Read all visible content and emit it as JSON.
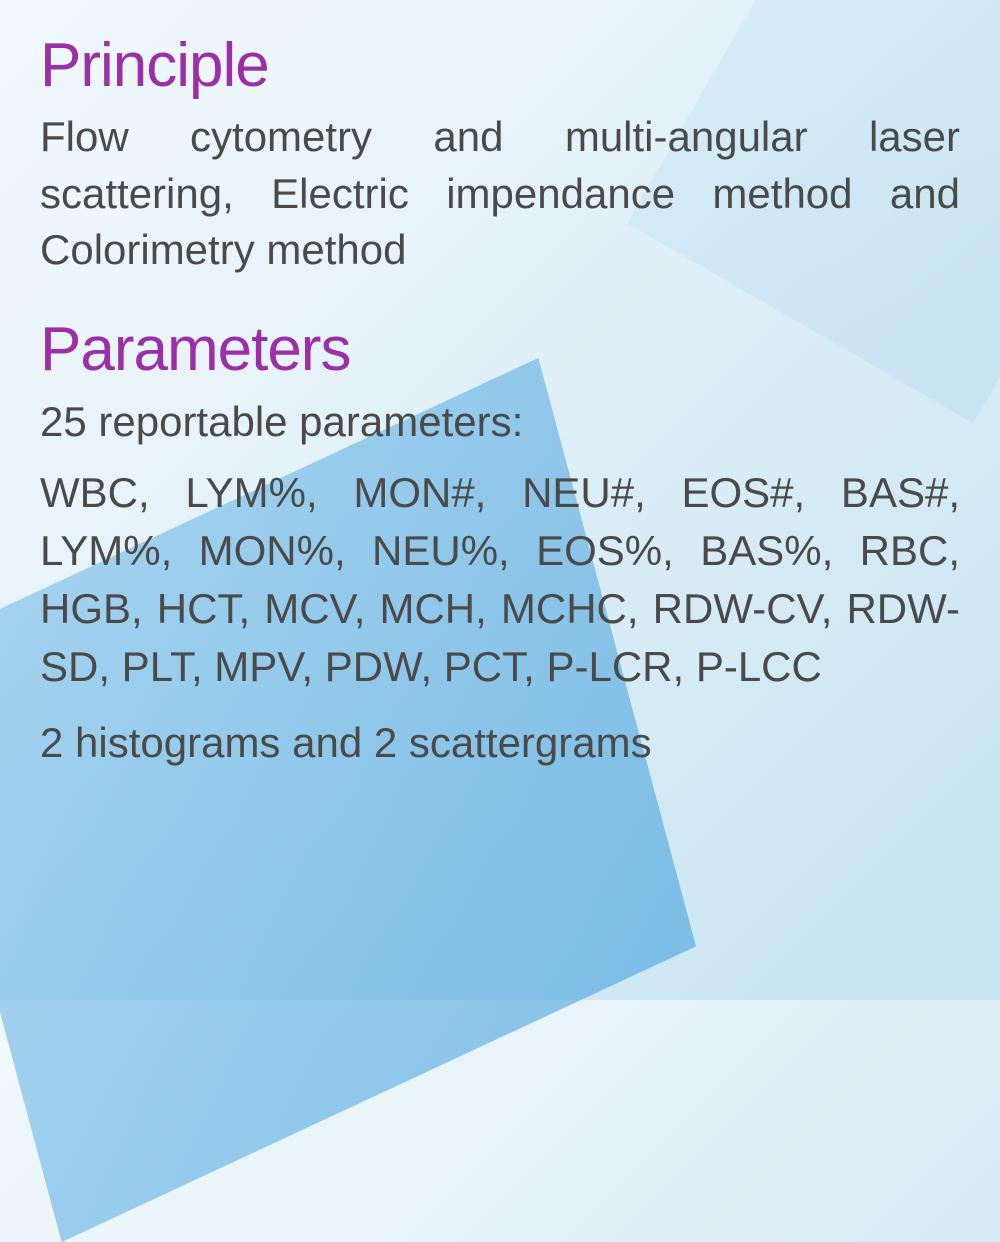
{
  "styling": {
    "heading_color": "#9b2fa8",
    "body_color": "#4a4a4a",
    "heading_fontsize": 62,
    "body_fontsize": 42,
    "background_gradient": [
      "#f0f8fc",
      "#e8f4fa",
      "#d8ecf5",
      "#c5e4f2"
    ],
    "accent_shape_color": "rgba(70, 160, 220, 0.6)"
  },
  "sections": {
    "principle": {
      "heading": "Principle",
      "body": "Flow cytometry and multi-angular laser scattering, Electric impendance method and Colorimetry method"
    },
    "parameters": {
      "heading": "Parameters",
      "intro": "25 reportable parameters:",
      "list": "WBC, LYM%, MON#, NEU#, EOS#, BAS#, LYM%, MON%, NEU%, EOS%, BAS%, RBC, HGB, HCT, MCV, MCH, MCHC, RDW-CV, RDW-SD, PLT, MPV, PDW, PCT, P-LCR, P-LCC",
      "footer": "2 histograms and 2 scattergrams"
    }
  }
}
